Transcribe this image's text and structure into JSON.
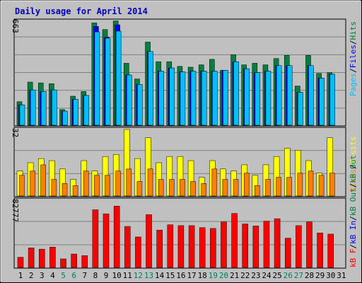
{
  "chart_data": [
    {
      "type": "bar",
      "title": "Daily usage for April 2014",
      "panel": "top",
      "ymax_label": "663",
      "right_labels": [
        "Pages",
        "/",
        "Files",
        "/",
        "Hits"
      ],
      "colors": {
        "Hits": "#008040",
        "Files": "#0000ff",
        "Pages": "#00c0ff"
      },
      "categories": [
        "1",
        "2",
        "3",
        "4",
        "5",
        "6",
        "7",
        "8",
        "9",
        "10",
        "11",
        "12",
        "13",
        "14",
        "15",
        "16",
        "17",
        "18",
        "19",
        "20",
        "21",
        "22",
        "23",
        "24",
        "25",
        "26",
        "27",
        "28",
        "29",
        "30"
      ],
      "series": [
        {
          "name": "Hits",
          "values": [
            150,
            275,
            270,
            265,
            100,
            185,
            215,
            652,
            610,
            665,
            395,
            295,
            530,
            405,
            405,
            375,
            370,
            385,
            420,
            350,
            450,
            385,
            395,
            385,
            425,
            445,
            250,
            445,
            330,
            335
          ]
        },
        {
          "name": "Files",
          "values": [
            130,
            225,
            215,
            225,
            90,
            165,
            190,
            630,
            560,
            640,
            320,
            260,
            470,
            345,
            365,
            340,
            345,
            345,
            345,
            350,
            405,
            360,
            335,
            345,
            380,
            380,
            210,
            380,
            300,
            325
          ]
        },
        {
          "name": "Pages",
          "values": [
            130,
            225,
            215,
            225,
            90,
            165,
            190,
            595,
            555,
            600,
            320,
            260,
            470,
            345,
            365,
            340,
            345,
            345,
            345,
            350,
            405,
            360,
            335,
            345,
            380,
            380,
            210,
            380,
            300,
            325
          ]
        }
      ],
      "ylim": [
        0,
        663
      ]
    },
    {
      "type": "bar",
      "panel": "middle",
      "ymax_label": "32",
      "right_labels": [
        "Sites",
        "/",
        "Visits"
      ],
      "colors": {
        "Visits": "#ffff00",
        "Sites": "#ff8000"
      },
      "series": [
        {
          "name": "Visits",
          "values": [
            12,
            16,
            18,
            17,
            13,
            8,
            17,
            12,
            19,
            20,
            32,
            18,
            28,
            16,
            19,
            19,
            17,
            9,
            17,
            13,
            12,
            15,
            10,
            15,
            19,
            23,
            22,
            17,
            11,
            28
          ]
        },
        {
          "name": "Sites",
          "values": [
            10,
            12,
            15,
            8,
            6,
            5,
            12,
            10,
            10,
            12,
            13,
            7,
            13,
            8,
            8,
            8,
            7,
            6,
            13,
            8,
            8,
            11,
            5,
            8,
            9,
            9,
            11,
            12,
            10,
            11
          ]
        }
      ],
      "ylim": [
        0,
        32
      ]
    },
    {
      "type": "bar",
      "panel": "bottom",
      "ymax_label": "82777",
      "right_labels": [
        "kB F",
        "/",
        "kB In",
        "/",
        "kB Out",
        "/",
        "kB Out"
      ],
      "colors": {
        "kB F": "#ff0000",
        "kB In": "#0000ff",
        "kB Out": "#008040"
      },
      "series": [
        {
          "name": "kB F",
          "values": [
            12500,
            24000,
            22500,
            25000,
            10500,
            16500,
            14500,
            71000,
            66000,
            75500,
            50500,
            37500,
            65000,
            46000,
            52500,
            51500,
            51500,
            49000,
            48000,
            56000,
            66500,
            53500,
            51000,
            57000,
            60000,
            36000,
            51500,
            56000,
            42500,
            41000
          ]
        }
      ],
      "ylim": [
        0,
        82777
      ]
    }
  ],
  "x_axis": {
    "labels": [
      "1",
      "2",
      "3",
      "4",
      "5",
      "6",
      "7",
      "8",
      "9",
      "10",
      "11",
      "12",
      "13",
      "14",
      "15",
      "16",
      "17",
      "18",
      "19",
      "20",
      "21",
      "22",
      "23",
      "24",
      "25",
      "26",
      "27",
      "28",
      "29",
      "30",
      "31"
    ],
    "weekend_days": [
      "5",
      "6",
      "12",
      "13",
      "19",
      "20",
      "26",
      "27"
    ],
    "weekday_color": "#000000",
    "weekend_color": "#00805c"
  },
  "right_label_colors": {
    "top": [
      "#00c0ff",
      "#000000",
      "#0000ff",
      "#000000",
      "#008040"
    ],
    "middle": [
      "#ff8000",
      "#000000",
      "#ffff00"
    ],
    "bottom": [
      "#ff0000",
      "#000000",
      "#0000ff",
      "#000000",
      "#008040",
      "#000000",
      "#008040"
    ]
  }
}
